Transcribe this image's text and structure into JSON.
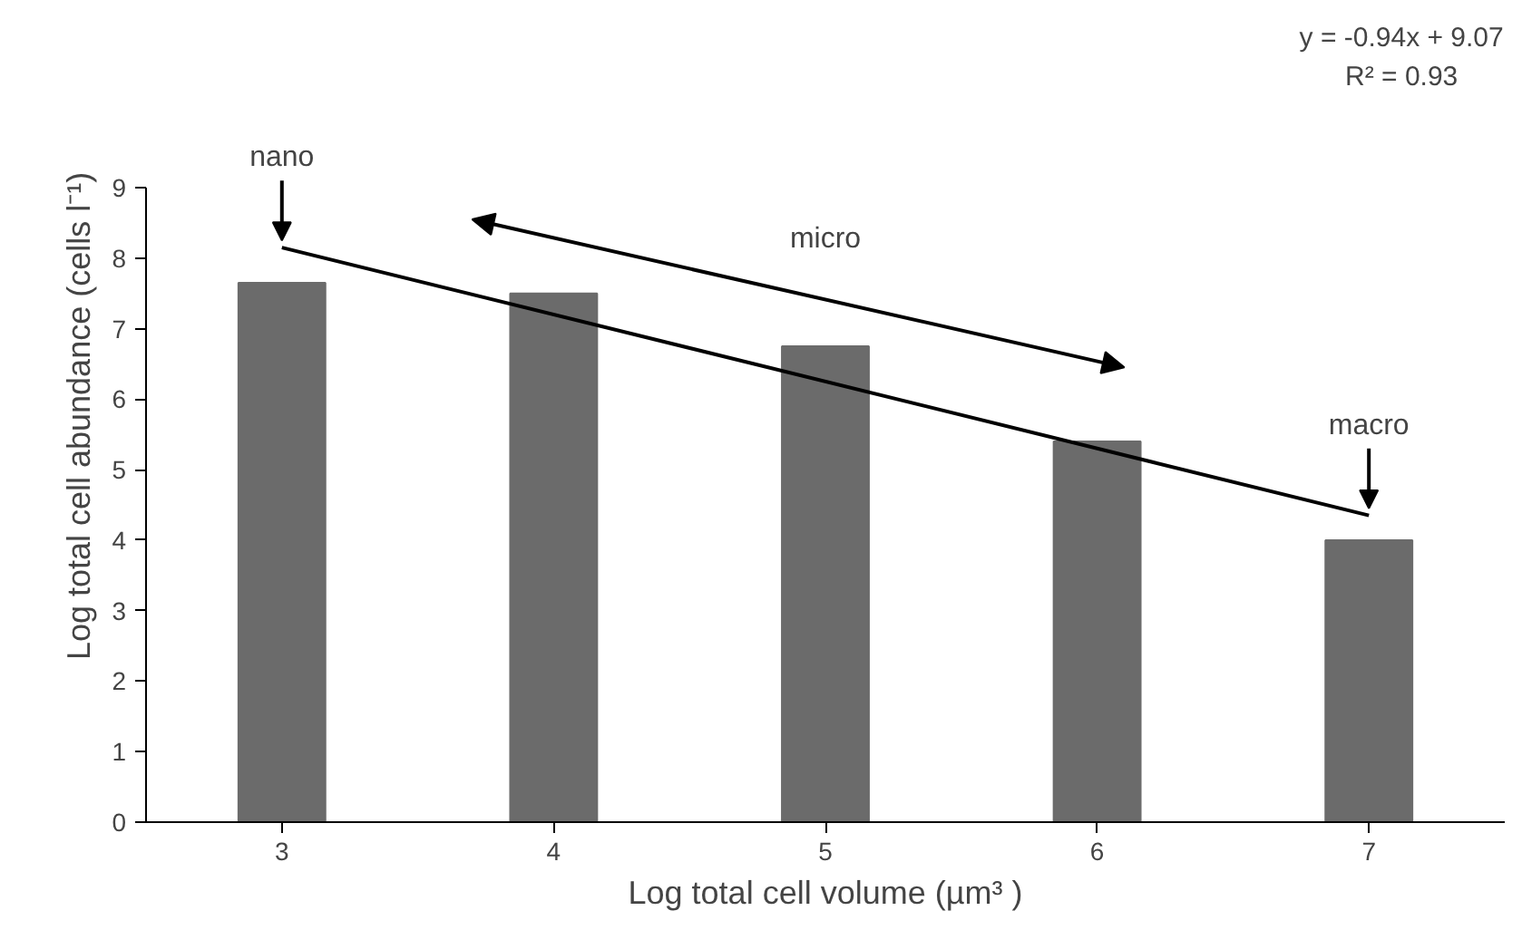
{
  "chart_data": {
    "type": "bar",
    "xlabel": "Log total cell volume (µm³ )",
    "ylabel": "Log total cell abundance (cells l⁻¹)",
    "x": [
      3,
      4,
      5,
      6,
      7
    ],
    "series": [
      {
        "color": "#6b6b6b",
        "values": [
          7.65,
          7.5,
          6.75,
          5.4,
          4.0
        ]
      },
      {
        "type": "line",
        "color": "#000000",
        "x": [
          3,
          7
        ],
        "values": [
          8.15,
          4.35
        ]
      }
    ],
    "xlim": [
      2.5,
      7.5
    ],
    "xticks": [
      3,
      4,
      5,
      6,
      7
    ],
    "ylim": [
      0,
      9
    ],
    "yticks": [
      0,
      1,
      2,
      3,
      4,
      5,
      6,
      7,
      8,
      9
    ],
    "grid": false,
    "annotations": [
      "y = -0.94x + 9.07",
      "R² = 0.93",
      {
        "text": "nano",
        "x": 3,
        "y": 8.15
      },
      "micro",
      {
        "text": "macro",
        "x": 7,
        "y": 4.35
      }
    ]
  }
}
